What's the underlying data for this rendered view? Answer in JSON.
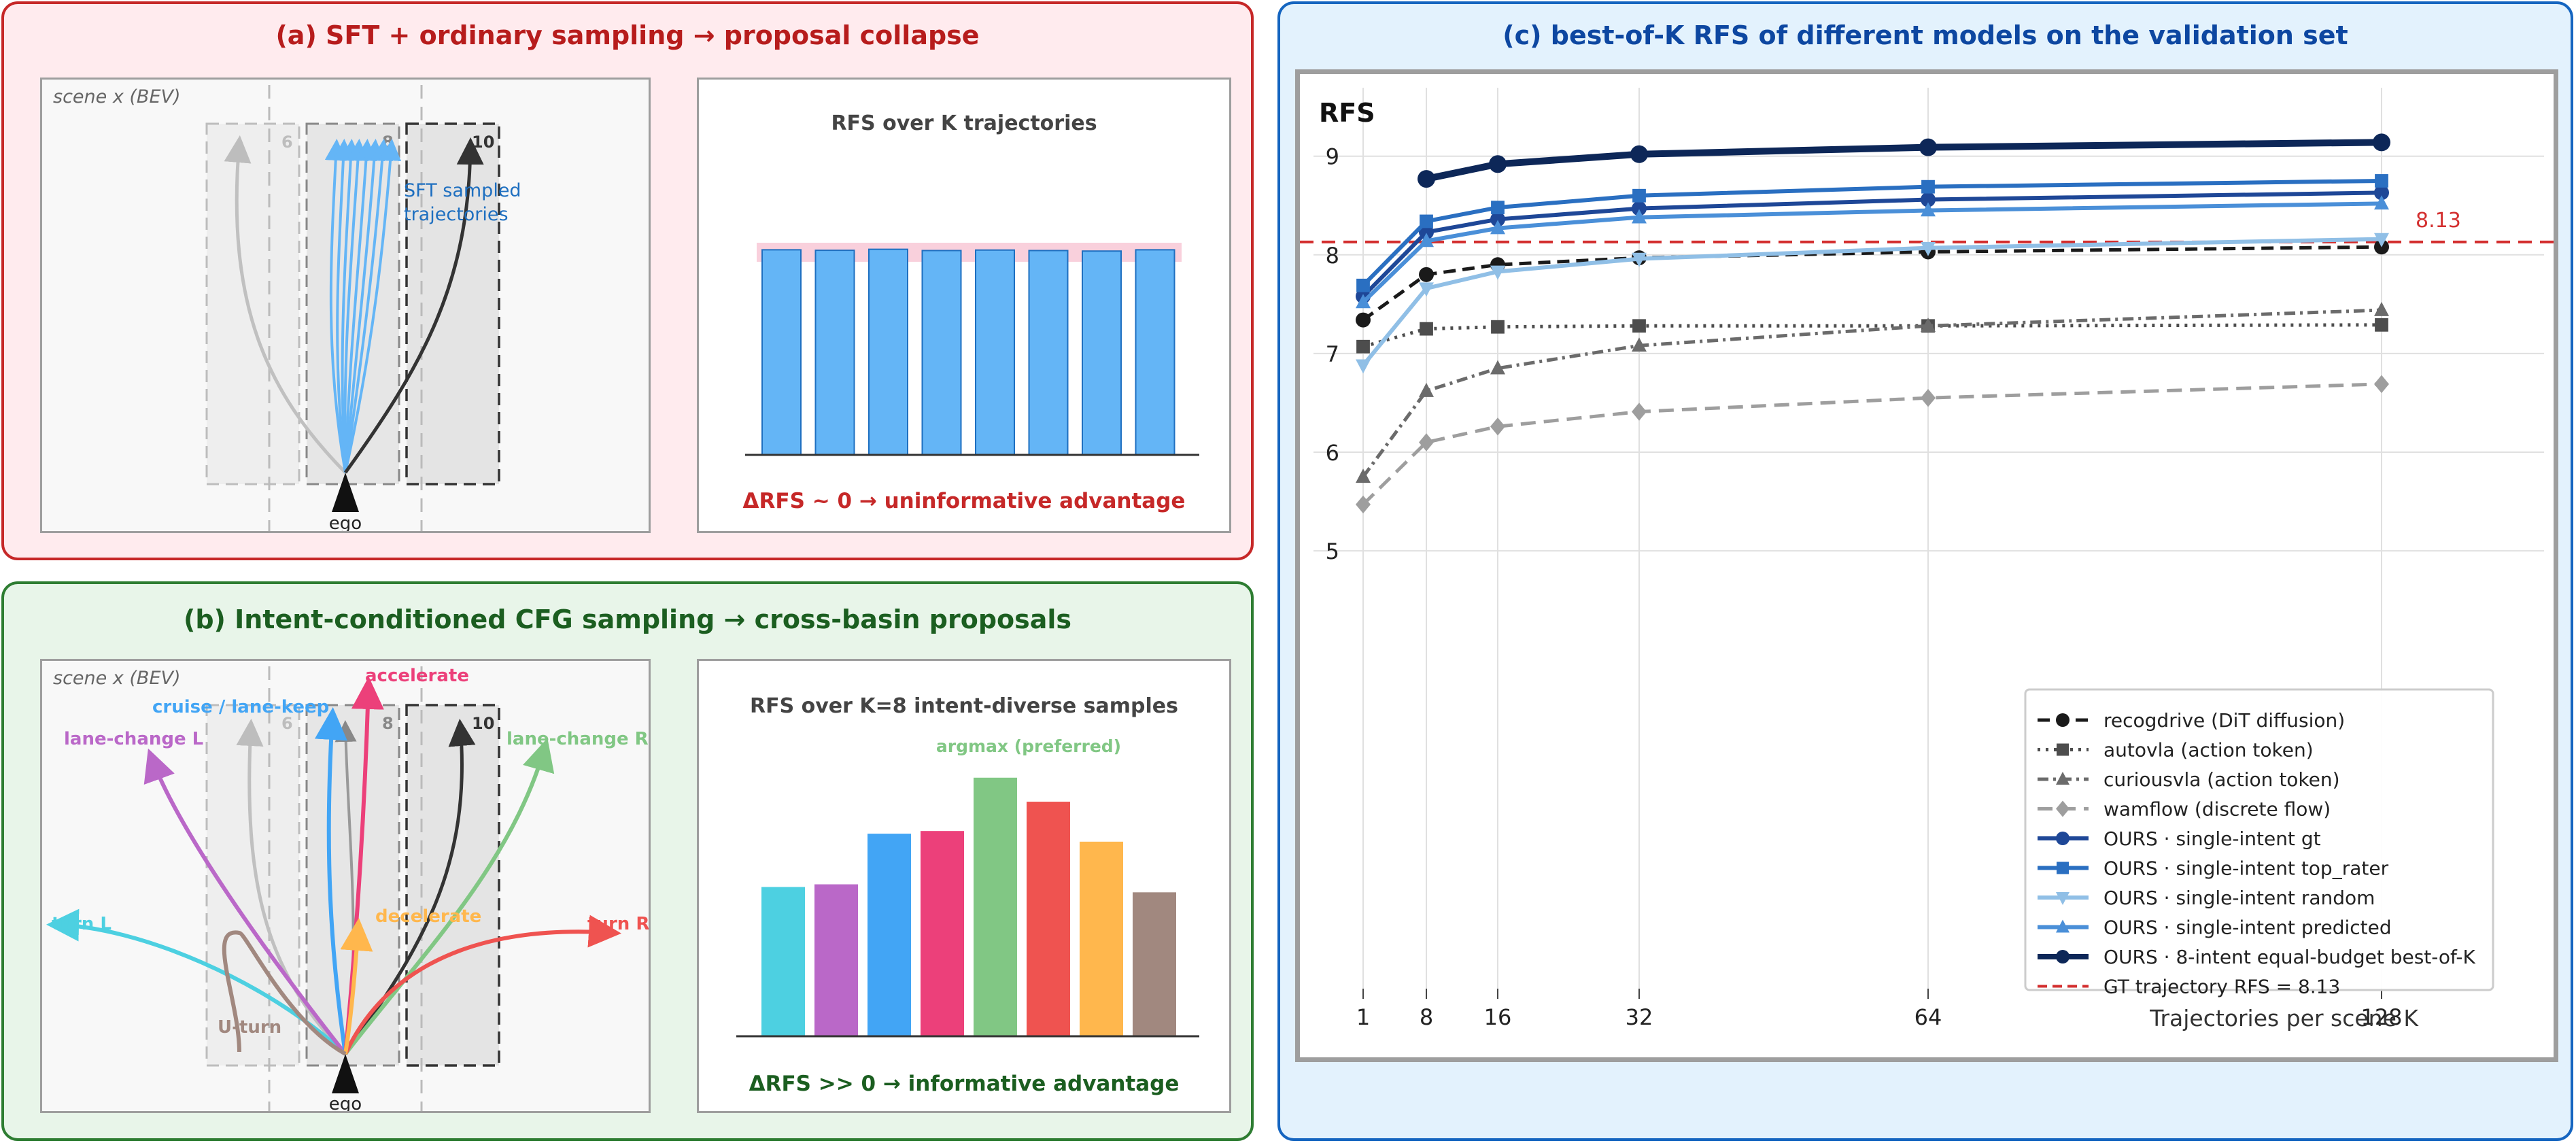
{
  "panel_a": {
    "title": "(a) SFT + ordinary sampling  →  proposal collapse",
    "bev_label": "scene x  (BEV)",
    "lane_labels": [
      "6",
      "8",
      "10"
    ],
    "annotation_line1": "SFT sampled",
    "annotation_line2": "trajectories",
    "ego_label": "ego",
    "chart_title": "RFS over K trajectories",
    "chart_caption": "ΔRFS ~ 0   →   uninformative advantage",
    "bar_values": [
      8.14,
      8.12,
      8.16,
      8.11,
      8.13,
      8.11,
      8.09,
      8.14
    ],
    "bar_color": "#64b5f6"
  },
  "panel_b": {
    "title": "(b) Intent-conditioned CFG sampling  →  cross-basin proposals",
    "bev_label": "scene x  (BEV)",
    "lane_labels": [
      "6",
      "8",
      "10"
    ],
    "ego_label": "ego",
    "intents": [
      {
        "key": "turn_l",
        "label": "turn L",
        "color": "#4dd0e1"
      },
      {
        "key": "lane_change_l",
        "label": "lane-change L",
        "color": "#ba68c8"
      },
      {
        "key": "cruise",
        "label": "cruise / lane-keep",
        "color": "#42a5f5"
      },
      {
        "key": "accelerate",
        "label": "accelerate",
        "color": "#ec407a"
      },
      {
        "key": "lane_change_r",
        "label": "lane-change R",
        "color": "#81c784"
      },
      {
        "key": "turn_r",
        "label": "turn R",
        "color": "#ef5350"
      },
      {
        "key": "decelerate",
        "label": "decelerate",
        "color": "#ffb74d"
      },
      {
        "key": "u_turn",
        "label": "U-turn",
        "color": "#a1887f"
      }
    ],
    "chart_title": "RFS over K=8 intent-diverse samples",
    "argmax_label": "argmax (preferred)",
    "chart_caption": "ΔRFS >> 0   →   informative advantage",
    "bar_values": [
      0.56,
      0.57,
      0.76,
      0.77,
      0.97,
      0.88,
      0.73,
      0.54
    ]
  },
  "panel_c": {
    "title": "(c) best-of-K RFS of different models on the validation set",
    "chart_data": {
      "type": "line",
      "ylabel": "RFS",
      "xlabel": "Trajectories per scene  K",
      "x_ticks": [
        1,
        8,
        16,
        32,
        64,
        128
      ],
      "y_ticks": [
        5,
        6,
        7,
        8,
        9
      ],
      "ylim": [
        4.6,
        9.45
      ],
      "grid": true,
      "legend_position": "lower-right",
      "reference": {
        "label": "GT trajectory  RFS = 8.13",
        "value": 8.13,
        "value_label": "8.13",
        "color": "#d32f2f"
      },
      "series": [
        {
          "name": "recogdrive (DiT diffusion)",
          "color": "#1a1a1a",
          "dash": "18,10",
          "marker": "circle",
          "width": 5,
          "points": [
            [
              1,
              7.34
            ],
            [
              8,
              7.8
            ],
            [
              16,
              7.9
            ],
            [
              32,
              7.97
            ],
            [
              64,
              8.03
            ],
            [
              128,
              8.08
            ]
          ]
        },
        {
          "name": "autovla (action token)",
          "color": "#4d4d4d",
          "dash": "4,8",
          "marker": "square",
          "width": 5,
          "points": [
            [
              1,
              7.07
            ],
            [
              8,
              7.25
            ],
            [
              16,
              7.27
            ],
            [
              32,
              7.28
            ],
            [
              64,
              7.28
            ],
            [
              128,
              7.29
            ]
          ]
        },
        {
          "name": "curiousvla (action token)",
          "color": "#6b6b6b",
          "dash": "16,7,4,7",
          "marker": "triangle-up",
          "width": 5,
          "points": [
            [
              1,
              5.75
            ],
            [
              8,
              6.62
            ],
            [
              16,
              6.85
            ],
            [
              32,
              7.08
            ],
            [
              64,
              7.28
            ],
            [
              128,
              7.44
            ]
          ]
        },
        {
          "name": "wamflow (discrete flow)",
          "color": "#9e9e9e",
          "dash": "22,12",
          "marker": "diamond",
          "width": 5,
          "points": [
            [
              1,
              5.47
            ],
            [
              8,
              6.1
            ],
            [
              16,
              6.26
            ],
            [
              32,
              6.41
            ],
            [
              64,
              6.55
            ],
            [
              128,
              6.69
            ]
          ]
        },
        {
          "name": "OURS · single-intent  gt",
          "color": "#1e4797",
          "dash": "",
          "marker": "circle",
          "width": 6,
          "points": [
            [
              1,
              7.58
            ],
            [
              8,
              8.23
            ],
            [
              16,
              8.36
            ],
            [
              32,
              8.47
            ],
            [
              64,
              8.56
            ],
            [
              128,
              8.63
            ]
          ]
        },
        {
          "name": "OURS · single-intent  top_rater",
          "color": "#2a6fc1",
          "dash": "",
          "marker": "square",
          "width": 6,
          "points": [
            [
              1,
              7.69
            ],
            [
              8,
              8.34
            ],
            [
              16,
              8.48
            ],
            [
              32,
              8.6
            ],
            [
              64,
              8.69
            ],
            [
              128,
              8.75
            ]
          ]
        },
        {
          "name": "OURS · single-intent  random",
          "color": "#90bfe6",
          "dash": "",
          "marker": "triangle-down",
          "width": 6,
          "points": [
            [
              1,
              6.88
            ],
            [
              8,
              7.66
            ],
            [
              16,
              7.83
            ],
            [
              32,
              7.96
            ],
            [
              64,
              8.07
            ],
            [
              128,
              8.16
            ]
          ]
        },
        {
          "name": "OURS · single-intent  predicted",
          "color": "#4a8fd8",
          "dash": "",
          "marker": "triangle-up",
          "width": 6,
          "points": [
            [
              1,
              7.52
            ],
            [
              8,
              8.14
            ],
            [
              16,
              8.27
            ],
            [
              32,
              8.38
            ],
            [
              64,
              8.45
            ],
            [
              128,
              8.52
            ]
          ]
        },
        {
          "name": "OURS · 8-intent equal-budget best-of-K",
          "color": "#0d2758",
          "dash": "",
          "marker": "circle",
          "width": 10,
          "points": [
            [
              8,
              8.77
            ],
            [
              16,
              8.92
            ],
            [
              32,
              9.02
            ],
            [
              64,
              9.09
            ],
            [
              128,
              9.14
            ]
          ]
        }
      ]
    }
  }
}
